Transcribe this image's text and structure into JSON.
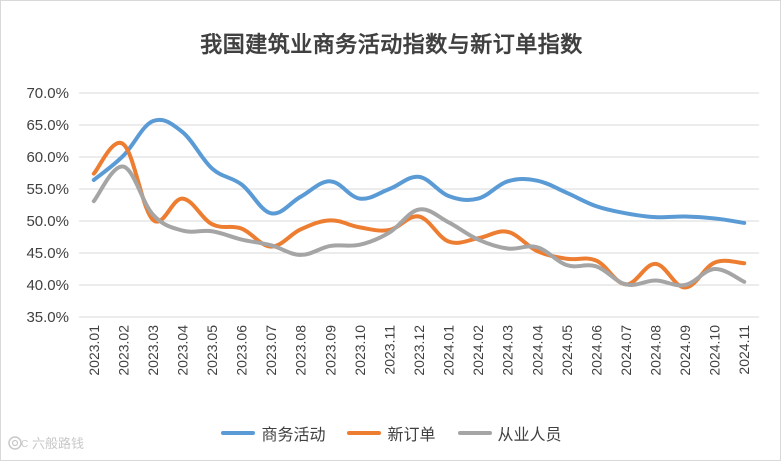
{
  "chart_data": {
    "type": "line",
    "title": "我国建筑业商务活动指数与新订单指数",
    "categories": [
      "2023.01",
      "2023.02",
      "2023.03",
      "2023.04",
      "2023.05",
      "2023.06",
      "2023.07",
      "2023.08",
      "2023.09",
      "2023.10",
      "2023.11",
      "2023.12",
      "2024.01",
      "2024.02",
      "2024.03",
      "2024.04",
      "2024.05",
      "2024.06",
      "2024.07",
      "2024.08",
      "2024.09",
      "2024.10",
      "2024.11"
    ],
    "ylim": [
      35,
      70
    ],
    "yticks": [
      "70.0%",
      "65.0%",
      "60.0%",
      "55.0%",
      "50.0%",
      "45.0%",
      "40.0%",
      "35.0%"
    ],
    "series": [
      {
        "name": "商务活动",
        "color": "#5b9bd5",
        "values": [
          56.4,
          60.2,
          65.6,
          63.9,
          58.2,
          55.7,
          51.2,
          53.8,
          56.2,
          53.5,
          55.0,
          56.9,
          53.9,
          53.5,
          56.2,
          56.3,
          54.4,
          52.3,
          51.2,
          50.6,
          50.7,
          50.4,
          49.7
        ]
      },
      {
        "name": "新订单",
        "color": "#ed7d31",
        "values": [
          57.4,
          62.0,
          50.2,
          53.5,
          49.5,
          48.8,
          46.0,
          48.7,
          50.1,
          49.0,
          48.6,
          50.7,
          46.8,
          47.3,
          48.3,
          45.3,
          44.1,
          43.8,
          40.1,
          43.3,
          39.6,
          43.5,
          43.4
        ]
      },
      {
        "name": "从业人员",
        "color": "#a5a5a5",
        "values": [
          53.1,
          58.5,
          51.0,
          48.5,
          48.4,
          47.1,
          46.2,
          44.7,
          46.1,
          46.3,
          48.2,
          51.8,
          49.8,
          47.1,
          45.7,
          45.9,
          43.1,
          42.9,
          40.1,
          40.7,
          40.0,
          42.5,
          40.5
        ]
      }
    ]
  },
  "watermark": {
    "text": "六般路钱",
    "icon": "camera-logo-icon"
  }
}
